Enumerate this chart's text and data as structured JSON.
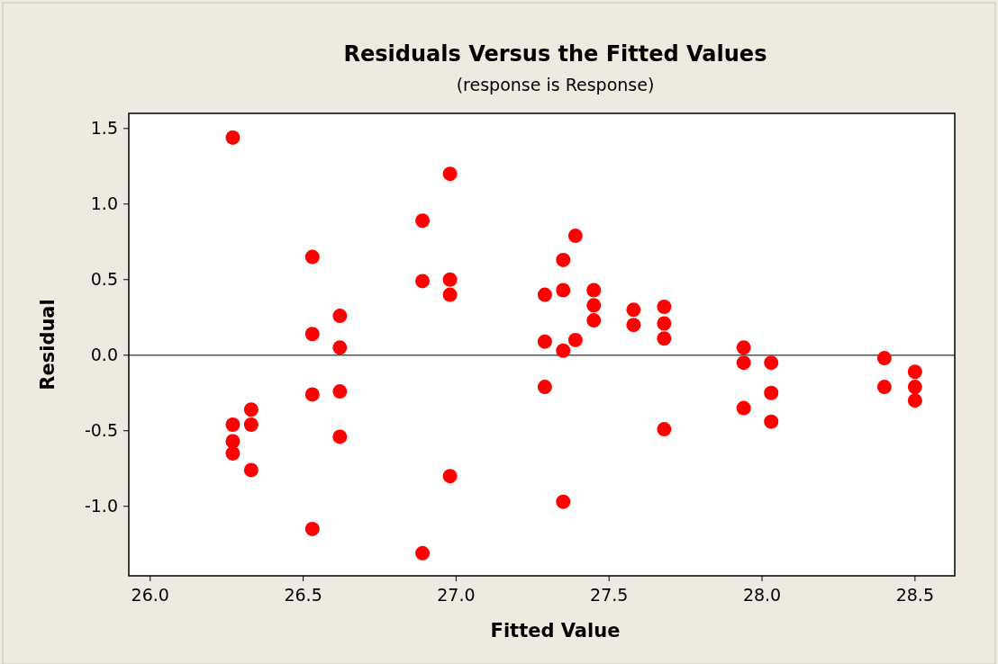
{
  "chart_data": {
    "type": "scatter",
    "title": "Residuals Versus the Fitted Values",
    "subtitle": "(response is Response)",
    "xlabel": "Fitted Value",
    "ylabel": "Residual",
    "series": [
      {
        "color": "#ff0000",
        "x": [
          26.27,
          26.27,
          26.27,
          26.27,
          26.33,
          26.33,
          26.33,
          26.53,
          26.53,
          26.53,
          26.53,
          26.62,
          26.62,
          26.62,
          26.62,
          26.89,
          26.89,
          26.89,
          26.98,
          26.98,
          26.98,
          26.98,
          27.29,
          27.29,
          27.29,
          27.35,
          27.35,
          27.35,
          27.35,
          27.39,
          27.39,
          27.45,
          27.45,
          27.45,
          27.58,
          27.58,
          27.68,
          27.68,
          27.68,
          27.68,
          27.94,
          27.94,
          27.94,
          28.03,
          28.03,
          28.03,
          28.4,
          28.4,
          28.5,
          28.5,
          28.5
        ],
        "values": [
          1.44,
          -0.46,
          -0.57,
          -0.65,
          -0.36,
          -0.46,
          -0.76,
          0.65,
          0.14,
          -0.26,
          -1.15,
          0.26,
          0.05,
          -0.24,
          -0.54,
          0.89,
          0.49,
          -1.31,
          1.2,
          0.5,
          0.4,
          -0.8,
          0.4,
          0.09,
          -0.21,
          0.63,
          0.43,
          0.03,
          -0.97,
          0.79,
          0.1,
          0.43,
          0.33,
          0.23,
          0.3,
          0.2,
          0.32,
          0.21,
          0.11,
          -0.49,
          0.05,
          -0.05,
          -0.35,
          -0.05,
          -0.25,
          -0.44,
          -0.02,
          -0.21,
          -0.11,
          -0.21,
          -0.3
        ]
      }
    ],
    "xlim": [
      25.93,
      28.63
    ],
    "ylim": [
      -1.46,
      1.6
    ],
    "xticks": [
      {
        "value": 26,
        "label": "26.0"
      },
      {
        "value": 26.5,
        "label": "26.5"
      },
      {
        "value": 27,
        "label": "27.0"
      },
      {
        "value": 27.5,
        "label": "27.5"
      },
      {
        "value": 28,
        "label": "28.0"
      },
      {
        "value": 28.5,
        "label": "28.5"
      }
    ],
    "yticks": [
      {
        "value": -1,
        "label": "-1.0"
      },
      {
        "value": -0.5,
        "label": "-0.5"
      },
      {
        "value": 0,
        "label": "0.0"
      },
      {
        "value": 0.5,
        "label": "0.5"
      },
      {
        "value": 1,
        "label": "1.0"
      },
      {
        "value": 1.5,
        "label": "1.5"
      }
    ],
    "ref_lines": [
      {
        "axis": "y",
        "value": 0,
        "color": "#555555"
      }
    ],
    "marker": "circle",
    "grid": false
  }
}
